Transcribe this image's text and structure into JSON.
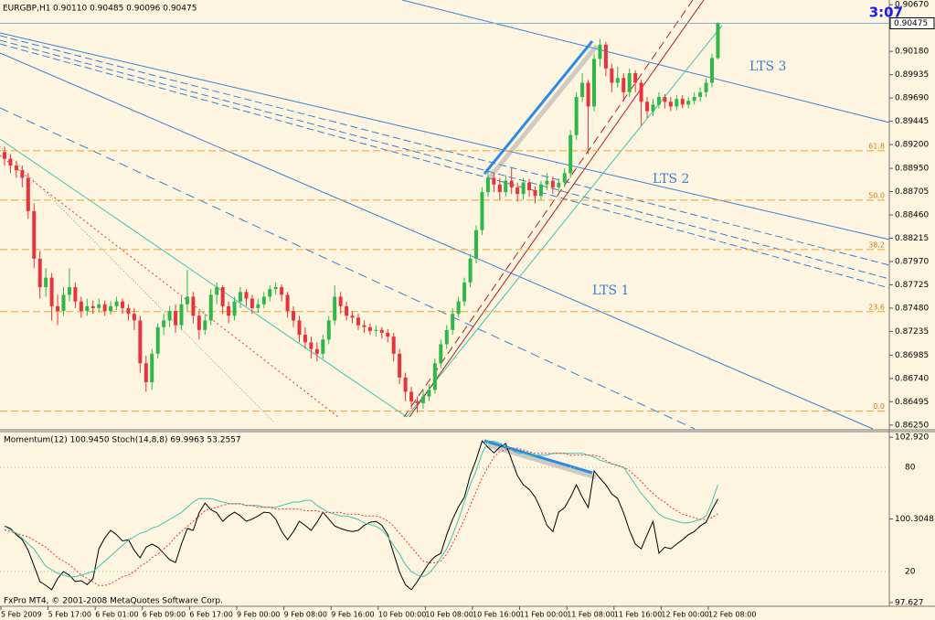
{
  "chart_data": [
    {
      "type": "candlestick",
      "title": "EURGBP,H1",
      "subtitle": "0.90110 0.90485 0.90096 0.90475",
      "clock": "3:07",
      "up_color": "#2eb84a",
      "down_color": "#e8323c",
      "x_tick_labels": [
        "5 Feb 2009",
        "5 Feb 17:00",
        "6 Feb 01:00",
        "6 Feb 09:00",
        "6 Feb 17:00",
        "9 Feb 00:00",
        "9 Feb 08:00",
        "9 Feb 16:00",
        "10 Feb 00:00",
        "10 Feb 08:00",
        "10 Feb 16:00",
        "11 Feb 00:00",
        "11 Feb 08:00",
        "11 Feb 16:00",
        "12 Feb 00:00",
        "12 Feb 08:00"
      ],
      "ylim": [
        0.8621,
        0.9072
      ],
      "yticks": [
        {
          "value": 0.9067,
          "label": "0.90670"
        },
        {
          "value": 0.9018,
          "label": "0.90180"
        },
        {
          "value": 0.89935,
          "label": "0.89935"
        },
        {
          "value": 0.8969,
          "label": "0.89690"
        },
        {
          "value": 0.89445,
          "label": "0.89445"
        },
        {
          "value": 0.892,
          "label": "0.89200"
        },
        {
          "value": 0.8895,
          "label": "0.88950"
        },
        {
          "value": 0.88705,
          "label": "0.88705"
        },
        {
          "value": 0.8846,
          "label": "0.88460"
        },
        {
          "value": 0.88215,
          "label": "0.88215"
        },
        {
          "value": 0.8797,
          "label": "0.87970"
        },
        {
          "value": 0.87725,
          "label": "0.87725"
        },
        {
          "value": 0.8748,
          "label": "0.87480"
        },
        {
          "value": 0.87235,
          "label": "0.87235"
        },
        {
          "value": 0.86985,
          "label": "0.86985"
        },
        {
          "value": 0.8674,
          "label": "0.86740"
        },
        {
          "value": 0.86495,
          "label": "0.86495"
        },
        {
          "value": 0.8625,
          "label": "0.86250"
        }
      ],
      "last_price": {
        "value": 0.90475,
        "label": "0.90475"
      },
      "fib_levels": [
        {
          "label": "61.8",
          "value": 0.89134
        },
        {
          "label": "50.0",
          "value": 0.88615
        },
        {
          "label": "38.2",
          "value": 0.88096
        },
        {
          "label": "23.6",
          "value": 0.87443
        },
        {
          "label": "0.0",
          "value": 0.86396
        }
      ],
      "annotations": [
        "LTS 3",
        "LTS 2",
        "LTS 1"
      ],
      "open": [
        0.8912,
        0.8905,
        0.8898,
        0.8893,
        0.8885,
        0.885,
        0.88,
        0.877,
        0.878,
        0.875,
        0.8745,
        0.8762,
        0.877,
        0.8755,
        0.8745,
        0.875,
        0.8748,
        0.8752,
        0.8745,
        0.875,
        0.8755,
        0.8748,
        0.8742,
        0.8735,
        0.869,
        0.867,
        0.87,
        0.8728,
        0.8735,
        0.8745,
        0.873,
        0.8752,
        0.876,
        0.874,
        0.8725,
        0.8735,
        0.8762,
        0.877,
        0.875,
        0.874,
        0.8755,
        0.8765,
        0.8758,
        0.8748,
        0.8752,
        0.876,
        0.8768,
        0.877,
        0.8762,
        0.8745,
        0.8735,
        0.872,
        0.8712,
        0.8705,
        0.87,
        0.8715,
        0.8735,
        0.876,
        0.875,
        0.874,
        0.8738,
        0.873,
        0.8728,
        0.8724,
        0.8725,
        0.8722,
        0.8718,
        0.87,
        0.8675,
        0.866,
        0.865,
        0.8648,
        0.8655,
        0.8662,
        0.869,
        0.871,
        0.8725,
        0.8742,
        0.8755,
        0.8775,
        0.88,
        0.883,
        0.887,
        0.8885,
        0.8878,
        0.887,
        0.8882,
        0.8875,
        0.8868,
        0.888,
        0.8872,
        0.8866,
        0.8878,
        0.8882,
        0.8875,
        0.888,
        0.889,
        0.893,
        0.897,
        0.8985,
        0.896,
        0.901,
        0.9025,
        0.9,
        0.8985,
        0.899,
        0.8975,
        0.8995,
        0.8985,
        0.8965,
        0.8955,
        0.8962,
        0.897,
        0.8965,
        0.896,
        0.8968,
        0.8962,
        0.8966,
        0.897,
        0.8975,
        0.8985,
        0.9011
      ],
      "high": [
        0.8918,
        0.891,
        0.8903,
        0.8898,
        0.889,
        0.8858,
        0.8808,
        0.879,
        0.8785,
        0.8762,
        0.877,
        0.879,
        0.8775,
        0.876,
        0.8758,
        0.8756,
        0.8758,
        0.8756,
        0.8755,
        0.876,
        0.8758,
        0.8752,
        0.8748,
        0.874,
        0.8698,
        0.8705,
        0.8732,
        0.8742,
        0.875,
        0.8752,
        0.876,
        0.8788,
        0.8765,
        0.8745,
        0.8742,
        0.8768,
        0.8775,
        0.8772,
        0.8755,
        0.876,
        0.877,
        0.8768,
        0.8762,
        0.8758,
        0.8765,
        0.8772,
        0.8775,
        0.8773,
        0.8765,
        0.875,
        0.874,
        0.8728,
        0.8718,
        0.8712,
        0.872,
        0.874,
        0.8772,
        0.8765,
        0.8755,
        0.8745,
        0.8742,
        0.8735,
        0.8732,
        0.873,
        0.8728,
        0.8726,
        0.8722,
        0.8705,
        0.868,
        0.8665,
        0.8655,
        0.8662,
        0.8668,
        0.8695,
        0.8715,
        0.873,
        0.8748,
        0.876,
        0.878,
        0.8805,
        0.8835,
        0.8875,
        0.8892,
        0.889,
        0.8885,
        0.8888,
        0.8895,
        0.888,
        0.8885,
        0.8884,
        0.8876,
        0.8882,
        0.889,
        0.8886,
        0.8884,
        0.8895,
        0.8935,
        0.8975,
        0.8995,
        0.8988,
        0.9015,
        0.9031,
        0.9028,
        0.9005,
        0.9002,
        0.8995,
        0.9,
        0.8998,
        0.8988,
        0.897,
        0.8968,
        0.8975,
        0.8973,
        0.897,
        0.8972,
        0.8972,
        0.897,
        0.8975,
        0.898,
        0.899,
        0.9015,
        0.90485
      ],
      "low": [
        0.8898,
        0.889,
        0.8885,
        0.8875,
        0.8842,
        0.879,
        0.8758,
        0.876,
        0.8735,
        0.873,
        0.874,
        0.8755,
        0.8748,
        0.8738,
        0.874,
        0.8742,
        0.8743,
        0.874,
        0.8741,
        0.8746,
        0.8742,
        0.8735,
        0.8725,
        0.868,
        0.866,
        0.8662,
        0.8695,
        0.872,
        0.8728,
        0.8722,
        0.8725,
        0.8745,
        0.8732,
        0.8715,
        0.872,
        0.873,
        0.8752,
        0.8742,
        0.8732,
        0.8735,
        0.8748,
        0.875,
        0.8742,
        0.8743,
        0.8748,
        0.8755,
        0.8762,
        0.8755,
        0.8738,
        0.8728,
        0.8712,
        0.8705,
        0.8695,
        0.8692,
        0.8695,
        0.871,
        0.873,
        0.8742,
        0.8735,
        0.8732,
        0.8725,
        0.8722,
        0.872,
        0.8718,
        0.8716,
        0.8712,
        0.8692,
        0.8668,
        0.865,
        0.8642,
        0.8638,
        0.8642,
        0.865,
        0.8658,
        0.8685,
        0.8705,
        0.872,
        0.8738,
        0.875,
        0.877,
        0.8795,
        0.8825,
        0.8865,
        0.887,
        0.8862,
        0.8865,
        0.8868,
        0.886,
        0.8862,
        0.8865,
        0.8858,
        0.8862,
        0.8872,
        0.8868,
        0.887,
        0.8875,
        0.8885,
        0.8925,
        0.8965,
        0.891,
        0.8955,
        0.9002,
        0.8992,
        0.8975,
        0.898,
        0.8965,
        0.897,
        0.8975,
        0.894,
        0.8948,
        0.895,
        0.8958,
        0.8958,
        0.8955,
        0.8956,
        0.8958,
        0.8958,
        0.8962,
        0.8965,
        0.897,
        0.898,
        0.90096
      ],
      "close": [
        0.8905,
        0.8898,
        0.8893,
        0.8885,
        0.885,
        0.88,
        0.877,
        0.878,
        0.875,
        0.8745,
        0.8762,
        0.877,
        0.8755,
        0.8745,
        0.875,
        0.8748,
        0.8752,
        0.8745,
        0.875,
        0.8755,
        0.8748,
        0.8742,
        0.8735,
        0.869,
        0.867,
        0.87,
        0.8728,
        0.8735,
        0.8745,
        0.873,
        0.8752,
        0.876,
        0.874,
        0.8725,
        0.8735,
        0.8762,
        0.877,
        0.875,
        0.874,
        0.8755,
        0.8765,
        0.8758,
        0.8748,
        0.8752,
        0.876,
        0.8768,
        0.877,
        0.8762,
        0.8745,
        0.8735,
        0.872,
        0.8712,
        0.8705,
        0.87,
        0.8715,
        0.8735,
        0.876,
        0.875,
        0.874,
        0.8738,
        0.873,
        0.8728,
        0.8724,
        0.8725,
        0.8722,
        0.8718,
        0.87,
        0.8675,
        0.866,
        0.865,
        0.8648,
        0.8655,
        0.8662,
        0.869,
        0.871,
        0.8725,
        0.8742,
        0.8755,
        0.8775,
        0.88,
        0.883,
        0.887,
        0.8885,
        0.8878,
        0.887,
        0.8882,
        0.8875,
        0.8868,
        0.888,
        0.8872,
        0.8866,
        0.8878,
        0.8882,
        0.8875,
        0.888,
        0.889,
        0.893,
        0.897,
        0.8985,
        0.896,
        0.901,
        0.9025,
        0.9,
        0.8985,
        0.899,
        0.8975,
        0.8995,
        0.8985,
        0.8965,
        0.8955,
        0.8962,
        0.897,
        0.8965,
        0.896,
        0.8968,
        0.8962,
        0.8966,
        0.897,
        0.8975,
        0.8985,
        0.9011,
        0.90475
      ]
    },
    {
      "type": "line",
      "title": "Momentum(12) 100.9450  Stoch(14,8,8) 69.9963 53.2557",
      "footer": "FxPro MT4, © 2001-2008 MetaQuotes Software Corp.",
      "ylim": [
        0,
        100
      ],
      "yticks": [
        80,
        20
      ],
      "grid": true,
      "y2lim": [
        97.51,
        103.07
      ],
      "y2ticks": [
        {
          "value": 102.92,
          "label": "102.920"
        },
        {
          "value": 100.3048,
          "label": "100.3048"
        },
        {
          "value": 97.627,
          "label": "97.627"
        }
      ],
      "series": [
        {
          "color": "#000000",
          "axis": "y2",
          "dashed": false,
          "values": [
            100.08,
            100,
            99.8,
            99.64,
            99.3,
            98.8,
            98.3,
            98.18,
            98.04,
            98.4,
            98.62,
            98.5,
            98.3,
            98.33,
            98.2,
            98.4,
            99.35,
            99.7,
            99.94,
            99.8,
            99.6,
            99.64,
            99.3,
            99.06,
            99.4,
            99.5,
            99.4,
            99.2,
            99,
            98.91,
            99.5,
            100,
            99.94,
            100.5,
            100.81,
            100.6,
            100.5,
            100.23,
            100.4,
            100.52,
            100.4,
            100.23,
            100.3,
            100.4,
            100.52,
            100.5,
            100.3,
            99.9,
            99.64,
            99.9,
            100.23,
            100.1,
            99.94,
            100.2,
            100.52,
            100.3,
            100.08,
            100,
            99.94,
            99.9,
            99.94,
            100.1,
            100.2,
            100.23,
            100.1,
            99.8,
            99.2,
            98.6,
            98.2,
            98.04,
            98.3,
            98.6,
            98.9,
            99.1,
            99.2,
            99.8,
            100.3,
            100.7,
            101,
            101.7,
            102.2,
            102.8,
            102.6,
            102.42,
            102.6,
            102.72,
            102.2,
            101.69,
            101.4,
            101.25,
            101,
            100.6,
            100.1,
            99.9,
            100.52,
            100.67,
            101,
            101.4,
            101,
            100.67,
            101.84,
            101.6,
            101.4,
            101.1,
            100.96,
            100.5,
            99.94,
            99.5,
            99.35,
            99.8,
            100.23,
            99.21,
            99.4,
            99.35,
            99.5,
            99.64,
            99.8,
            99.9,
            100.08,
            100.2,
            100.6,
            100.945
          ]
        },
        {
          "color": "#3cc4b4",
          "axis": "y",
          "dashed": false,
          "values": [
            46,
            44,
            42,
            39,
            36,
            33,
            28,
            23,
            21,
            19,
            18,
            17,
            17,
            18,
            19,
            20,
            23,
            26,
            29,
            32,
            35,
            38,
            40,
            42,
            43,
            45,
            46,
            48,
            50,
            52,
            54,
            57,
            60,
            62,
            62,
            62,
            61,
            60,
            59,
            59,
            59,
            58,
            58,
            58,
            57,
            57,
            57,
            58,
            59,
            60,
            60,
            61,
            61,
            58,
            56,
            54,
            53,
            52,
            52,
            51,
            50,
            48,
            47,
            46,
            44,
            40,
            35,
            30,
            24,
            20,
            18,
            17,
            19,
            23,
            28,
            33,
            41,
            50,
            60,
            70,
            78,
            88,
            95,
            95,
            94,
            92,
            90,
            88,
            88,
            87,
            87,
            87,
            87,
            88,
            88,
            88,
            88,
            88,
            88,
            87,
            86,
            84,
            83,
            82,
            81,
            80,
            75,
            70,
            65,
            61,
            57,
            53,
            51,
            50,
            49,
            48,
            48,
            49,
            50,
            52,
            60,
            69.9963
          ]
        },
        {
          "color": "#e8323c",
          "axis": "y",
          "dashed": true,
          "values": [
            44,
            43,
            42,
            41,
            40,
            38,
            36,
            34,
            31,
            28,
            26,
            24,
            21,
            18,
            16,
            14,
            12,
            12,
            13,
            15,
            17,
            18,
            20,
            23,
            25,
            28,
            30,
            33,
            36,
            40,
            43,
            46,
            49,
            52,
            55,
            56,
            57,
            58,
            59,
            59,
            59,
            58,
            58,
            57,
            57,
            57,
            56,
            56,
            56,
            56,
            56,
            55,
            55,
            55,
            54,
            54,
            54,
            54,
            53,
            53,
            53,
            52,
            52,
            52,
            51,
            49,
            46,
            42,
            38,
            34,
            30,
            26,
            25,
            25,
            26,
            30,
            36,
            43,
            50,
            58,
            66,
            74,
            80,
            86,
            89,
            90,
            91,
            91,
            90,
            89,
            88,
            88,
            88,
            88,
            88,
            88,
            87,
            87,
            87,
            87,
            87,
            86,
            84,
            82,
            81,
            80,
            78,
            75,
            72,
            68,
            65,
            62,
            60,
            57,
            55,
            53,
            52,
            51,
            50,
            50,
            51,
            53.2557
          ]
        }
      ]
    }
  ]
}
